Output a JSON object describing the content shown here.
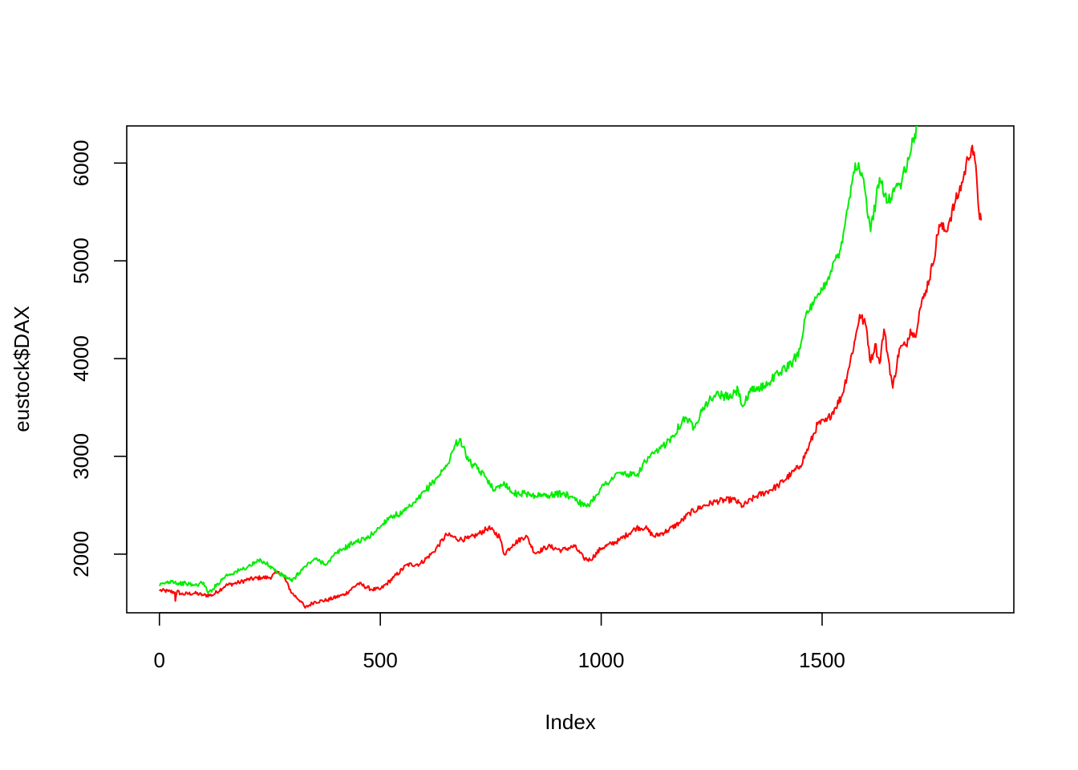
{
  "chart_data": {
    "type": "line",
    "title": "",
    "xlabel": "Index",
    "ylabel": "eustock$DAX",
    "xlim": [
      -74,
      1934
    ],
    "ylim": [
      1400,
      6380
    ],
    "x_ticks": [
      0,
      500,
      1000,
      1500
    ],
    "x_tick_labels": [
      "0",
      "500",
      "1000",
      "1500"
    ],
    "y_ticks": [
      2000,
      3000,
      4000,
      5000,
      6000
    ],
    "y_tick_labels": [
      "2000",
      "3000",
      "4000",
      "5000",
      "6000"
    ],
    "grid": false,
    "legend": "none",
    "series": [
      {
        "color": "#ff0000",
        "x": [
          1,
          20,
          35,
          36,
          40,
          50,
          80,
          100,
          120,
          150,
          180,
          200,
          230,
          250,
          270,
          280,
          300,
          320,
          330,
          350,
          380,
          420,
          450,
          480,
          500,
          530,
          560,
          590,
          620,
          650,
          680,
          700,
          720,
          745,
          770,
          780,
          800,
          830,
          850,
          880,
          910,
          940,
          960,
          975,
          1000,
          1040,
          1080,
          1100,
          1120,
          1150,
          1180,
          1200,
          1230,
          1260,
          1300,
          1320,
          1350,
          1380,
          1400,
          1430,
          1450,
          1470,
          1490,
          1510,
          1530,
          1545,
          1560,
          1575,
          1585,
          1600,
          1610,
          1620,
          1630,
          1640,
          1650,
          1660,
          1675,
          1690,
          1700,
          1710,
          1720,
          1735,
          1750,
          1765,
          1780,
          1790,
          1800,
          1810,
          1820,
          1830,
          1840,
          1850,
          1855,
          1860
        ],
        "y": [
          1630,
          1620,
          1610,
          1520,
          1620,
          1590,
          1600,
          1580,
          1580,
          1680,
          1710,
          1740,
          1760,
          1760,
          1820,
          1780,
          1600,
          1520,
          1450,
          1510,
          1530,
          1590,
          1700,
          1640,
          1640,
          1760,
          1890,
          1900,
          2020,
          2200,
          2150,
          2160,
          2200,
          2270,
          2180,
          2000,
          2100,
          2190,
          2010,
          2080,
          2040,
          2080,
          1960,
          1940,
          2060,
          2140,
          2270,
          2270,
          2180,
          2240,
          2330,
          2420,
          2490,
          2540,
          2560,
          2490,
          2590,
          2650,
          2700,
          2820,
          2900,
          3100,
          3330,
          3360,
          3500,
          3620,
          3900,
          4200,
          4450,
          4330,
          3960,
          4150,
          3950,
          4300,
          4000,
          3700,
          4100,
          4140,
          4300,
          4220,
          4480,
          4700,
          4950,
          5370,
          5300,
          5440,
          5580,
          5700,
          5850,
          6050,
          6180,
          5850,
          5500,
          5420
        ]
      },
      {
        "color": "#00ee00",
        "x": [
          1,
          10,
          30,
          40,
          60,
          80,
          100,
          110,
          120,
          150,
          180,
          200,
          230,
          250,
          270,
          290,
          300,
          320,
          350,
          380,
          400,
          440,
          470,
          500,
          520,
          550,
          580,
          600,
          620,
          650,
          670,
          680,
          700,
          720,
          740,
          760,
          780,
          800,
          830,
          850,
          880,
          910,
          940,
          960,
          975,
          1000,
          1040,
          1080,
          1100,
          1130,
          1160,
          1190,
          1210,
          1230,
          1260,
          1290,
          1310,
          1320,
          1340,
          1370,
          1400,
          1430,
          1450,
          1460,
          1480,
          1500,
          1520,
          1540,
          1560,
          1575,
          1590,
          1610,
          1630,
          1650,
          1665,
          1680,
          1700,
          1710,
          1715
        ],
        "y": [
          1680,
          1700,
          1730,
          1700,
          1700,
          1680,
          1710,
          1600,
          1640,
          1780,
          1830,
          1870,
          1940,
          1880,
          1800,
          1760,
          1720,
          1830,
          1950,
          1900,
          2010,
          2120,
          2160,
          2280,
          2380,
          2420,
          2530,
          2640,
          2740,
          2900,
          3120,
          3180,
          2950,
          2870,
          2780,
          2650,
          2740,
          2620,
          2620,
          2600,
          2600,
          2620,
          2580,
          2490,
          2520,
          2680,
          2830,
          2800,
          2950,
          3060,
          3200,
          3400,
          3300,
          3500,
          3640,
          3600,
          3680,
          3510,
          3670,
          3720,
          3850,
          3940,
          4100,
          4400,
          4550,
          4700,
          4900,
          5100,
          5600,
          6000,
          5900,
          5300,
          5850,
          5600,
          5750,
          5800,
          6100,
          6300,
          6380
        ]
      }
    ]
  }
}
